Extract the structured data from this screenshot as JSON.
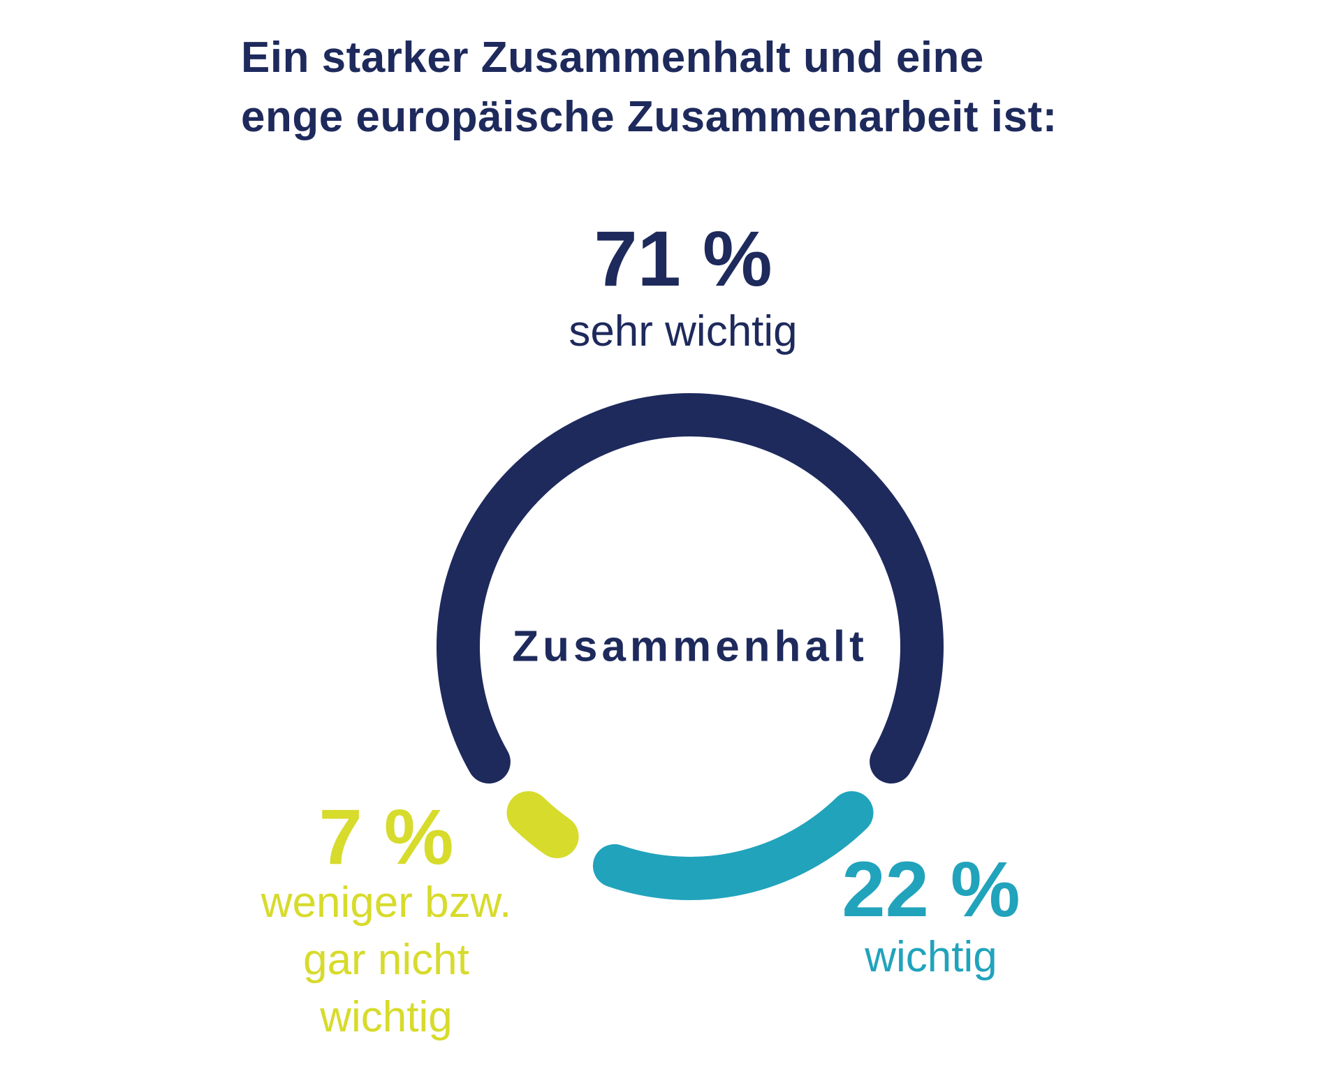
{
  "title": {
    "line1": "Ein starker Zusammenhalt und eine",
    "line2": "enge europäische Zusammenarbeit ist:"
  },
  "center_label": "Zusammenhalt",
  "chart_data": {
    "type": "pie",
    "subtype": "donut",
    "title": "Ein starker Zusammenhalt und eine enge europäische Zusammenarbeit ist:",
    "center_label": "Zusammenhalt",
    "units": "%",
    "segments": [
      {
        "name": "sehr wichtig",
        "value": 71,
        "display": "71 %",
        "color": "#1E2A5C"
      },
      {
        "name": "wichtig",
        "value": 22,
        "display": "22 %",
        "color": "#21A3BC"
      },
      {
        "name": "weniger bzw. gar nicht wichtig",
        "value": 7,
        "display": "7 %",
        "color": "#D7DB2B"
      }
    ],
    "layout": {
      "start": "largest segment centered at top, drawn clockwise",
      "gap_degrees": 8,
      "radius": 332,
      "stroke_width": 62,
      "legend_position": "callouts around donut"
    }
  },
  "callouts": {
    "sehr_wichtig": {
      "pct": "71 %",
      "label": "sehr wichtig"
    },
    "wichtig": {
      "pct": "22 %",
      "label": "wichtig"
    },
    "weniger": {
      "pct": "7 %",
      "label_line1": "weniger bzw.",
      "label_line2": "gar nicht",
      "label_line3": "wichtig"
    }
  },
  "colors": {
    "navy": "#1E2A5C",
    "teal": "#21A3BC",
    "yellow": "#D7DB2B",
    "background": "#FFFFFF"
  }
}
